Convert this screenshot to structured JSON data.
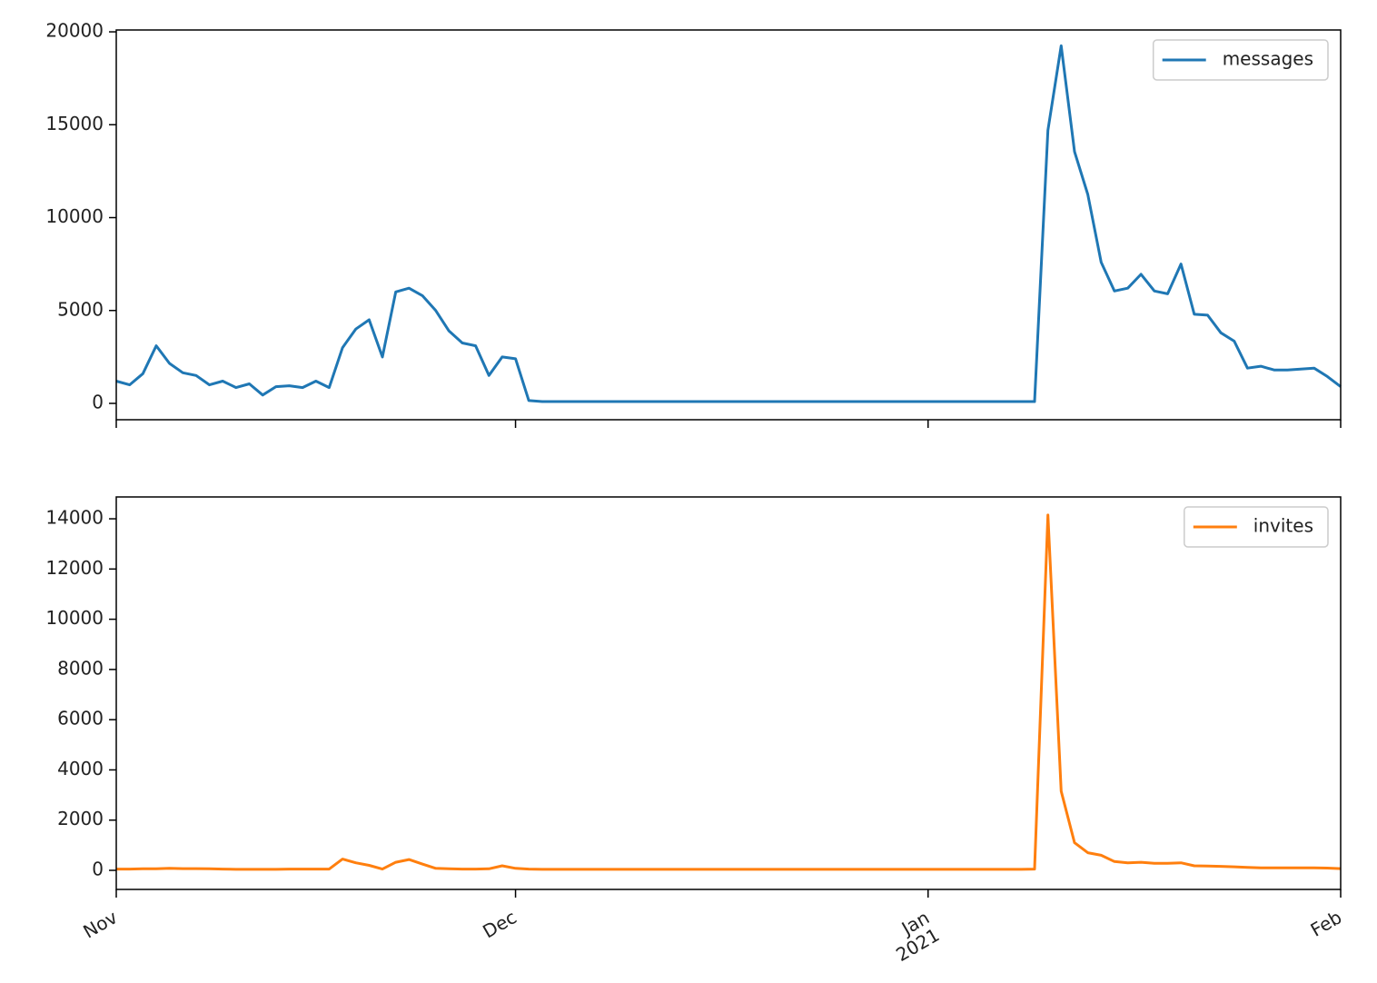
{
  "chart_data": {
    "type": "line",
    "x": [
      0,
      1,
      2,
      3,
      4,
      5,
      6,
      7,
      8,
      9,
      10,
      11,
      12,
      13,
      14,
      15,
      16,
      17,
      18,
      19,
      20,
      21,
      22,
      23,
      24,
      25,
      26,
      27,
      28,
      29,
      30,
      31,
      32,
      33,
      34,
      35,
      36,
      37,
      38,
      39,
      40,
      41,
      42,
      43,
      44,
      45,
      46,
      47,
      48,
      49,
      50,
      51,
      52,
      53,
      54,
      55,
      56,
      57,
      58,
      59,
      60,
      61,
      62,
      63,
      64,
      65,
      66,
      67,
      68,
      69,
      70,
      71,
      72,
      73,
      74,
      75,
      76,
      77,
      78,
      79,
      80,
      81,
      82,
      83,
      84,
      85,
      86,
      87,
      88,
      89,
      90,
      91,
      92
    ],
    "xlim": [
      0,
      92
    ],
    "xticks": [
      {
        "value": 0,
        "label": "Nov"
      },
      {
        "value": 30,
        "label": "Dec"
      },
      {
        "value": 61,
        "label": "Jan\n2021"
      },
      {
        "value": 92,
        "label": "Feb"
      }
    ],
    "panels": [
      {
        "ylim": [
          -880,
          20100
        ],
        "yticks": [
          0,
          5000,
          10000,
          15000,
          20000
        ],
        "legend": "upper right",
        "series": [
          {
            "name": "messages",
            "color": "#1f77b4",
            "values": [
              1200,
              1000,
              1600,
              3100,
              2150,
              1650,
              1500,
              1000,
              1200,
              850,
              1050,
              450,
              900,
              950,
              850,
              1200,
              850,
              3000,
              4000,
              4500,
              2500,
              6000,
              6200,
              5800,
              5000,
              3900,
              3250,
              3100,
              1500,
              2500,
              2400,
              150,
              100,
              100,
              100,
              100,
              100,
              100,
              100,
              100,
              100,
              100,
              100,
              100,
              100,
              100,
              100,
              100,
              100,
              100,
              100,
              100,
              100,
              100,
              100,
              100,
              100,
              100,
              100,
              100,
              100,
              100,
              100,
              100,
              100,
              100,
              100,
              100,
              100,
              100,
              14700,
              19250,
              13550,
              11250,
              7600,
              6050,
              6200,
              6950,
              6050,
              5900,
              7500,
              4800,
              4750,
              3800,
              3350,
              1900,
              2000,
              1800,
              1800,
              1850,
              1900,
              1450,
              900
            ]
          }
        ]
      },
      {
        "ylim": [
          -760,
          14870
        ],
        "yticks": [
          0,
          2000,
          4000,
          6000,
          8000,
          10000,
          12000,
          14000
        ],
        "legend": "upper right",
        "series": [
          {
            "name": "invites",
            "color": "#ff7f0e",
            "values": [
              50,
              50,
              60,
              60,
              80,
              70,
              70,
              60,
              50,
              40,
              40,
              40,
              40,
              50,
              50,
              50,
              50,
              450,
              300,
              200,
              50,
              320,
              430,
              250,
              80,
              60,
              50,
              50,
              60,
              180,
              80,
              50,
              40,
              40,
              40,
              40,
              40,
              40,
              40,
              40,
              40,
              40,
              40,
              40,
              40,
              40,
              40,
              40,
              40,
              40,
              40,
              40,
              40,
              40,
              40,
              40,
              40,
              40,
              40,
              40,
              40,
              40,
              40,
              40,
              40,
              40,
              40,
              40,
              40,
              50,
              14150,
              3150,
              1100,
              700,
              600,
              350,
              300,
              320,
              280,
              280,
              300,
              180,
              170,
              160,
              140,
              120,
              100,
              100,
              100,
              100,
              100,
              90,
              70
            ]
          }
        ]
      }
    ]
  }
}
